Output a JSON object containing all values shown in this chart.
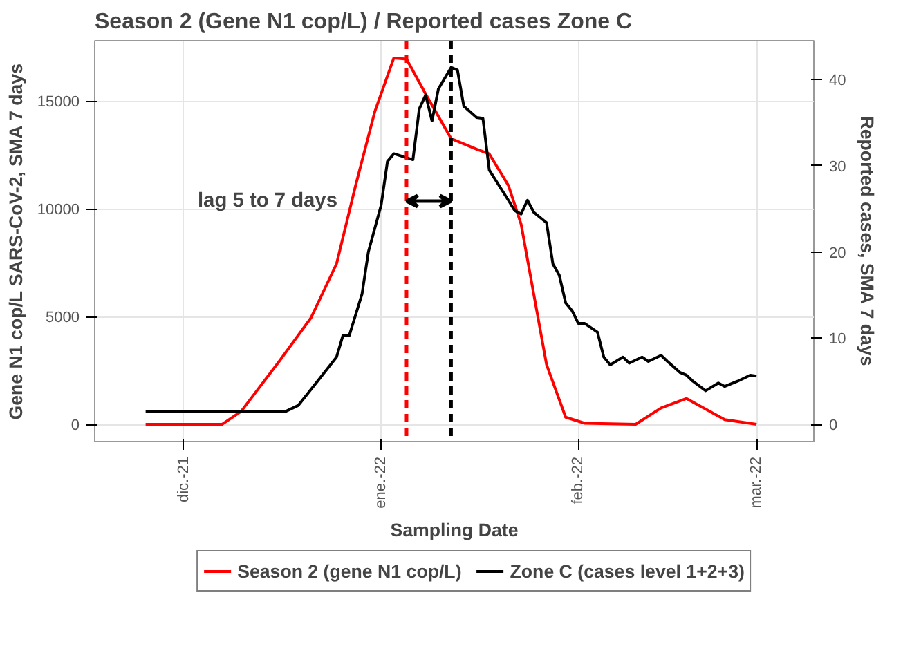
{
  "chart_data": {
    "type": "line",
    "title": "Season 2 (Gene N1 cop/L) / Reported cases Zone C",
    "xlabel": "Sampling Date",
    "ylabel": "Gene N1 cop/L SARS-CoV-2, SMA 7 days",
    "y2label": "Reported cases, SMA 7 days",
    "xlim": [
      "2021-11-17",
      "2022-03-10"
    ],
    "xticks": [
      {
        "value": "2021-12-01",
        "label": "dic.-21"
      },
      {
        "value": "2022-01-01",
        "label": "ene.-22"
      },
      {
        "value": "2022-02-01",
        "label": "feb.-22"
      },
      {
        "value": "2022-03-01",
        "label": "mar.-22"
      }
    ],
    "ylim": [
      -800,
      17800
    ],
    "yticks": [
      0,
      5000,
      10000,
      15000
    ],
    "y2lim": [
      -2,
      44.5
    ],
    "y2ticks": [
      0,
      10,
      20,
      30,
      40
    ],
    "series": [
      {
        "name": "Season 2 (gene N1 cop/L)",
        "color": "#ff0000",
        "x": [
          "2021-11-25",
          "2021-12-07",
          "2021-12-10",
          "2021-12-16",
          "2021-12-21",
          "2021-12-25",
          "2021-12-28",
          "2021-12-31",
          "2022-01-03",
          "2022-01-05",
          "2022-01-08",
          "2022-01-12",
          "2022-01-16",
          "2022-01-18",
          "2022-01-21",
          "2022-01-23",
          "2022-01-25",
          "2022-01-27",
          "2022-01-30",
          "2022-02-02",
          "2022-02-10",
          "2022-02-14",
          "2022-02-18",
          "2022-02-20",
          "2022-02-24",
          "2022-03-01"
        ],
        "values": [
          0,
          0,
          600,
          2930,
          4950,
          7450,
          11090,
          14500,
          17000,
          16950,
          15330,
          13260,
          12770,
          12550,
          11090,
          9290,
          6030,
          2770,
          330,
          50,
          0,
          760,
          1200,
          870,
          220,
          0
        ]
      },
      {
        "name": "Zone C (cases level 1+2+3)",
        "color": "#000000",
        "axis": "y2",
        "x": [
          "2021-11-25",
          "2021-12-17",
          "2021-12-19",
          "2021-12-22",
          "2021-12-25",
          "2021-12-26",
          "2021-12-27",
          "2021-12-29",
          "2021-12-30",
          "2022-01-01",
          "2022-01-02",
          "2022-01-03",
          "2022-01-06",
          "2022-01-07",
          "2022-01-08",
          "2022-01-09",
          "2022-01-10",
          "2022-01-12",
          "2022-01-13",
          "2022-01-14",
          "2022-01-16",
          "2022-01-17",
          "2022-01-18",
          "2022-01-21",
          "2022-01-22",
          "2022-01-23",
          "2022-01-24",
          "2022-01-25",
          "2022-01-27",
          "2022-01-28",
          "2022-01-29",
          "2022-01-30",
          "2022-01-31",
          "2022-02-01",
          "2022-02-02",
          "2022-02-04",
          "2022-02-05",
          "2022-02-06",
          "2022-02-08",
          "2022-02-09",
          "2022-02-11",
          "2022-02-12",
          "2022-02-14",
          "2022-02-15",
          "2022-02-17",
          "2022-02-18",
          "2022-02-19",
          "2022-02-21",
          "2022-02-23",
          "2022-02-24",
          "2022-02-26",
          "2022-02-28",
          "2022-03-01"
        ],
        "values": [
          1.5,
          1.5,
          2.2,
          5.0,
          7.8,
          10.3,
          10.3,
          15.1,
          20,
          25.4,
          30.5,
          31.4,
          30.7,
          36.6,
          38.2,
          35.2,
          38.9,
          41.4,
          41.1,
          36.9,
          35.6,
          35.5,
          29.5,
          26,
          24.8,
          24.4,
          26,
          24.6,
          23.4,
          18.6,
          17.3,
          14.1,
          13.2,
          11.7,
          11.7,
          10.7,
          7.8,
          6.9,
          7.8,
          7.1,
          7.8,
          7.3,
          8.0,
          7.3,
          6.0,
          5.7,
          5.0,
          3.9,
          4.8,
          4.4,
          5.0,
          5.7,
          5.6
        ]
      }
    ],
    "ref_lines": [
      {
        "axis": "x",
        "value": "2022-01-05",
        "color": "#ff0000",
        "line_style": "dashed"
      },
      {
        "axis": "x",
        "value": "2022-01-12",
        "color": "#000000",
        "line_style": "dashed"
      }
    ],
    "annotations": [
      "lag 5 to 7 days"
    ],
    "grid": true,
    "legend": "bottom"
  }
}
